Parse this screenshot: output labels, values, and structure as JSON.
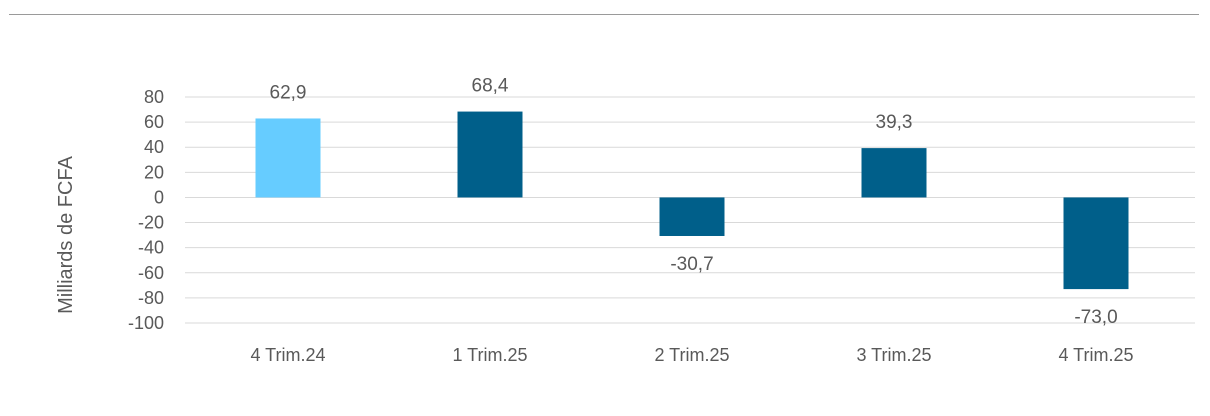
{
  "chart_data": {
    "type": "bar",
    "title": "",
    "xlabel": "",
    "ylabel": "Milliards de FCFA",
    "categories": [
      "4 Trim.24",
      "1 Trim.25",
      "2 Trim.25",
      "3 Trim.25",
      "4 Trim.25"
    ],
    "values": [
      62.9,
      68.4,
      -30.7,
      39.3,
      -73.0
    ],
    "data_labels": [
      "62,9",
      "68,4",
      "-30,7",
      "39,3",
      "-73,0"
    ],
    "ylim": [
      -100,
      80
    ],
    "yticks": [
      80,
      60,
      40,
      20,
      0,
      -20,
      -40,
      -60,
      -80,
      -100
    ],
    "ytick_labels": [
      "80",
      "60",
      "40",
      "20",
      "0",
      "-20",
      "-40",
      "-60",
      "-80",
      "-100"
    ],
    "grid": true,
    "colors": {
      "highlight": "#66CCFF",
      "primary": "#005F8A",
      "grid": "#D9D9D9",
      "text": "#595959"
    },
    "bar_colors": [
      "#66CCFF",
      "#005F8A",
      "#005F8A",
      "#005F8A",
      "#005F8A"
    ]
  }
}
